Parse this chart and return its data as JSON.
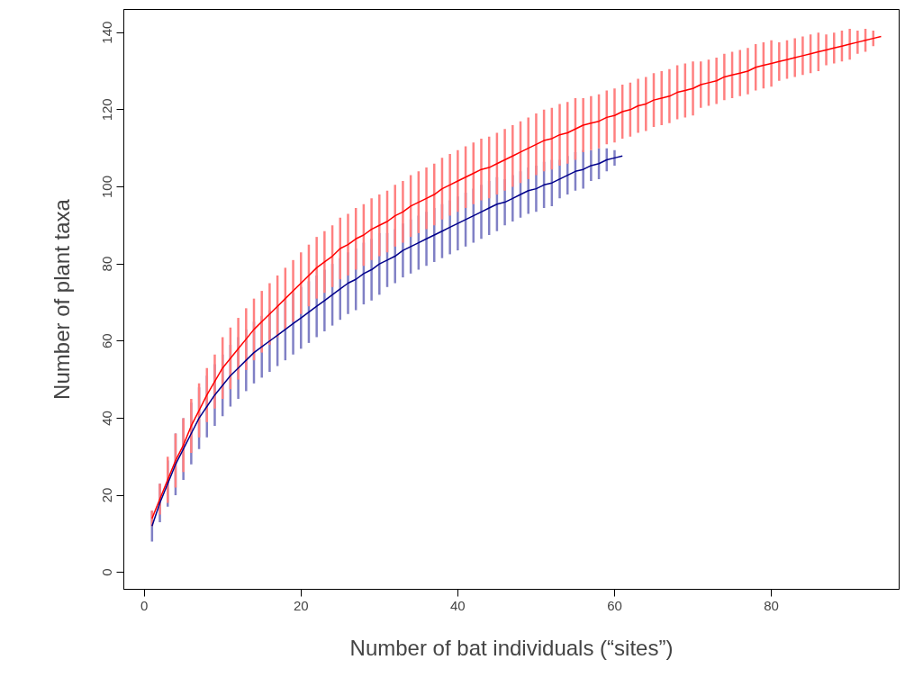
{
  "chart_data": {
    "type": "line",
    "xlabel": "Number of bat individuals (“sites”)",
    "ylabel": "Number of plant taxa",
    "xlim": [
      -2.6,
      96.3
    ],
    "ylim": [
      -4.4,
      146
    ],
    "xticks": [
      0,
      20,
      40,
      60,
      80
    ],
    "yticks": [
      0,
      20,
      40,
      60,
      80,
      100,
      120,
      140
    ],
    "grid": false,
    "series": [
      {
        "color": "#ff0000",
        "x": [
          1,
          2,
          3,
          4,
          5,
          6,
          7,
          8,
          9,
          10,
          11,
          12,
          13,
          14,
          15,
          16,
          17,
          18,
          19,
          20,
          21,
          22,
          23,
          24,
          25,
          26,
          27,
          28,
          29,
          30,
          31,
          32,
          33,
          34,
          35,
          36,
          37,
          38,
          39,
          40,
          41,
          42,
          43,
          44,
          45,
          46,
          47,
          48,
          49,
          50,
          51,
          52,
          53,
          54,
          55,
          56,
          57,
          58,
          59,
          60,
          61,
          62,
          63,
          64,
          65,
          66,
          67,
          68,
          69,
          70,
          71,
          72,
          73,
          74,
          75,
          76,
          77,
          78,
          79,
          80,
          81,
          82,
          83,
          84,
          85,
          86,
          87,
          88,
          89,
          90,
          91,
          92,
          93,
          94
        ],
        "values": [
          14,
          19,
          24,
          29,
          33,
          38,
          42,
          46,
          49.5,
          53,
          55.5,
          58,
          60.5,
          63,
          65,
          67,
          69,
          71,
          73,
          75,
          77,
          79,
          80.5,
          82,
          84,
          85,
          86.5,
          87.5,
          89,
          90,
          91,
          92.5,
          93.5,
          95,
          96,
          97,
          98,
          99.5,
          100.5,
          101.5,
          102.5,
          103.5,
          104.5,
          105,
          106,
          107,
          108,
          109,
          110,
          111,
          112,
          112.5,
          113.5,
          114,
          115,
          116,
          116.5,
          117,
          118,
          118.5,
          119.5,
          120,
          121,
          121.5,
          122.5,
          123,
          123.5,
          124.5,
          125,
          125.5,
          126.5,
          127,
          127.5,
          128.5,
          129,
          129.5,
          130,
          131,
          131.5,
          132,
          132.5,
          133,
          133.5,
          134,
          134.5,
          135,
          135.5,
          136,
          136.5,
          137,
          137.5,
          138,
          138.5,
          139
        ],
        "errors": [
          2,
          4,
          6,
          7,
          7,
          7,
          7,
          7,
          7,
          8,
          8,
          8,
          8,
          8,
          8,
          8,
          8,
          8,
          8,
          8,
          8,
          8,
          8,
          8,
          8,
          8,
          8,
          8,
          8,
          8,
          8,
          8,
          8,
          8,
          8,
          8,
          8,
          8,
          8,
          8,
          8,
          8,
          8,
          8,
          8,
          8,
          8,
          8,
          8,
          8,
          8,
          8,
          8,
          8,
          8,
          7,
          7,
          7,
          7,
          7,
          7,
          7,
          7,
          7,
          7,
          7,
          7,
          7,
          7,
          7,
          6,
          6,
          6,
          6,
          6,
          6,
          6,
          6,
          6,
          6,
          5,
          5,
          5,
          5,
          5,
          5,
          4,
          4,
          4,
          4,
          3,
          3,
          2,
          0
        ]
      },
      {
        "color": "#00008b",
        "x": [
          1,
          2,
          3,
          4,
          5,
          6,
          7,
          8,
          9,
          10,
          11,
          12,
          13,
          14,
          15,
          16,
          17,
          18,
          19,
          20,
          21,
          22,
          23,
          24,
          25,
          26,
          27,
          28,
          29,
          30,
          31,
          32,
          33,
          34,
          35,
          36,
          37,
          38,
          39,
          40,
          41,
          42,
          43,
          44,
          45,
          46,
          47,
          48,
          49,
          50,
          51,
          52,
          53,
          54,
          55,
          56,
          57,
          58,
          59,
          60,
          61
        ],
        "values": [
          12,
          18,
          23,
          28,
          32,
          36,
          40,
          43,
          46,
          48.5,
          51,
          53,
          55,
          57,
          58.5,
          60,
          61.5,
          63,
          64.5,
          66,
          67.5,
          69,
          70.5,
          72,
          73.5,
          75,
          76,
          77.5,
          78.5,
          80,
          81,
          82,
          83.5,
          84.5,
          85.5,
          86.5,
          87.5,
          88.5,
          89.5,
          90.5,
          91.5,
          92.5,
          93.5,
          94.5,
          95.5,
          96,
          97,
          98,
          99,
          99.5,
          100.5,
          101,
          102,
          103,
          104,
          104.5,
          105.5,
          106,
          107,
          107.5,
          108
        ],
        "errors": [
          4,
          5,
          6,
          8,
          8,
          8,
          8,
          8,
          8,
          8,
          8,
          8,
          8,
          8,
          8,
          8,
          8,
          8,
          8,
          8,
          8,
          8,
          8,
          8,
          8,
          8,
          8,
          8,
          8,
          8,
          7,
          7,
          7,
          7,
          7,
          7,
          7,
          7,
          7,
          7,
          7,
          7,
          7,
          7,
          7,
          6,
          6,
          6,
          6,
          6,
          6,
          6,
          5,
          5,
          5,
          5,
          4,
          4,
          3,
          2,
          0
        ]
      }
    ]
  }
}
